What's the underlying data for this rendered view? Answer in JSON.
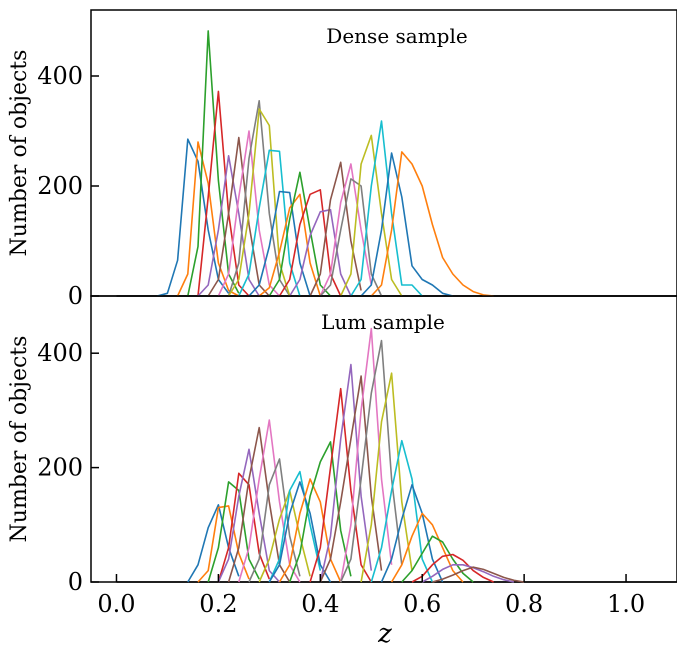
{
  "figure": {
    "xlabel": "z",
    "ylabel": "Number of objects",
    "xlim": [
      -0.05,
      1.1
    ],
    "xticks": [
      0.0,
      0.2,
      0.4,
      0.6,
      0.8,
      1.0
    ],
    "xtick_labels": [
      "0.0",
      "0.2",
      "0.4",
      "0.6",
      "0.8",
      "1.0"
    ]
  },
  "chart_data": [
    {
      "type": "line",
      "title": "Dense sample",
      "xlabel": "",
      "ylabel": "Number of objects",
      "xlim": [
        -0.05,
        1.1
      ],
      "ylim": [
        0,
        520
      ],
      "yticks": [
        0,
        200,
        400
      ],
      "ytick_labels": [
        "0",
        "200",
        "400"
      ],
      "grid": false,
      "series": [
        {
          "color": "#1f77b4",
          "x": [
            0.08,
            0.1,
            0.12,
            0.14,
            0.16,
            0.18,
            0.2,
            0.22
          ],
          "values": [
            0,
            5,
            65,
            285,
            245,
            120,
            30,
            5
          ]
        },
        {
          "color": "#ff7f0e",
          "x": [
            0.12,
            0.14,
            0.16,
            0.18,
            0.2,
            0.22,
            0.24
          ],
          "values": [
            0,
            40,
            280,
            205,
            60,
            10,
            0
          ]
        },
        {
          "color": "#2ca02c",
          "x": [
            0.14,
            0.16,
            0.18,
            0.2,
            0.22,
            0.24
          ],
          "values": [
            0,
            90,
            482,
            210,
            40,
            5
          ]
        },
        {
          "color": "#d62728",
          "x": [
            0.16,
            0.18,
            0.2,
            0.22,
            0.24,
            0.26
          ],
          "values": [
            0,
            180,
            372,
            150,
            20,
            0
          ]
        },
        {
          "color": "#9467bd",
          "x": [
            0.16,
            0.18,
            0.2,
            0.22,
            0.24,
            0.26,
            0.28
          ],
          "values": [
            0,
            20,
            120,
            255,
            150,
            30,
            0
          ]
        },
        {
          "color": "#8c564b",
          "x": [
            0.18,
            0.2,
            0.22,
            0.24,
            0.26,
            0.28,
            0.3
          ],
          "values": [
            0,
            30,
            150,
            288,
            130,
            20,
            0
          ]
        },
        {
          "color": "#e377c2",
          "x": [
            0.2,
            0.22,
            0.24,
            0.26,
            0.28,
            0.3,
            0.32
          ],
          "values": [
            0,
            40,
            180,
            300,
            120,
            20,
            0
          ]
        },
        {
          "color": "#7f7f7f",
          "x": [
            0.22,
            0.24,
            0.26,
            0.28,
            0.3,
            0.32,
            0.34
          ],
          "values": [
            0,
            60,
            250,
            355,
            150,
            30,
            0
          ]
        },
        {
          "color": "#bcbd22",
          "x": [
            0.22,
            0.24,
            0.26,
            0.28,
            0.3,
            0.32,
            0.34
          ],
          "values": [
            0,
            30,
            150,
            340,
            310,
            60,
            0
          ]
        },
        {
          "color": "#17becf",
          "x": [
            0.24,
            0.26,
            0.28,
            0.3,
            0.32,
            0.34,
            0.36
          ],
          "values": [
            0,
            40,
            160,
            265,
            263,
            60,
            0
          ]
        },
        {
          "color": "#1f77b4",
          "x": [
            0.26,
            0.28,
            0.3,
            0.32,
            0.34,
            0.36,
            0.38
          ],
          "values": [
            0,
            20,
            90,
            190,
            188,
            60,
            0
          ]
        },
        {
          "color": "#ff7f0e",
          "x": [
            0.28,
            0.3,
            0.32,
            0.34,
            0.36,
            0.38,
            0.4
          ],
          "values": [
            0,
            15,
            80,
            160,
            185,
            60,
            0
          ]
        },
        {
          "color": "#2ca02c",
          "x": [
            0.3,
            0.32,
            0.34,
            0.36,
            0.38,
            0.4,
            0.42
          ],
          "values": [
            0,
            30,
            140,
            225,
            120,
            20,
            0
          ]
        },
        {
          "color": "#d62728",
          "x": [
            0.32,
            0.34,
            0.36,
            0.38,
            0.4,
            0.42,
            0.44
          ],
          "values": [
            0,
            30,
            130,
            185,
            193,
            40,
            0
          ]
        },
        {
          "color": "#9467bd",
          "x": [
            0.34,
            0.36,
            0.38,
            0.4,
            0.42,
            0.44,
            0.46
          ],
          "values": [
            0,
            30,
            110,
            153,
            157,
            40,
            0
          ]
        },
        {
          "color": "#8c564b",
          "x": [
            0.38,
            0.4,
            0.42,
            0.44,
            0.46,
            0.48
          ],
          "values": [
            0,
            40,
            175,
            243,
            100,
            10
          ]
        },
        {
          "color": "#e377c2",
          "x": [
            0.4,
            0.42,
            0.44,
            0.46,
            0.48,
            0.5
          ],
          "values": [
            0,
            40,
            170,
            240,
            120,
            20
          ]
        },
        {
          "color": "#7f7f7f",
          "x": [
            0.4,
            0.42,
            0.44,
            0.46,
            0.48,
            0.5,
            0.52
          ],
          "values": [
            0,
            20,
            120,
            213,
            200,
            40,
            0
          ]
        },
        {
          "color": "#bcbd22",
          "x": [
            0.44,
            0.46,
            0.48,
            0.5,
            0.52,
            0.54,
            0.56
          ],
          "values": [
            0,
            40,
            240,
            292,
            150,
            30,
            0
          ]
        },
        {
          "color": "#17becf",
          "x": [
            0.46,
            0.48,
            0.5,
            0.52,
            0.54,
            0.56,
            0.58,
            0.6
          ],
          "values": [
            0,
            30,
            200,
            318,
            150,
            20,
            20,
            0
          ]
        },
        {
          "color": "#1f77b4",
          "x": [
            0.48,
            0.5,
            0.52,
            0.54,
            0.56,
            0.58,
            0.6,
            0.62,
            0.64,
            0.66
          ],
          "values": [
            0,
            20,
            120,
            260,
            180,
            55,
            30,
            20,
            5,
            0
          ]
        },
        {
          "color": "#ff7f0e",
          "x": [
            0.5,
            0.52,
            0.54,
            0.56,
            0.58,
            0.6,
            0.62,
            0.64,
            0.66,
            0.68,
            0.7,
            0.72,
            0.74
          ],
          "values": [
            0,
            20,
            120,
            262,
            240,
            200,
            130,
            70,
            40,
            20,
            8,
            2,
            0
          ]
        }
      ]
    },
    {
      "type": "line",
      "title": "Lum sample",
      "xlabel": "z",
      "ylabel": "Number of objects",
      "xlim": [
        -0.05,
        1.1
      ],
      "ylim": [
        0,
        500
      ],
      "yticks": [
        0,
        200,
        400
      ],
      "ytick_labels": [
        "0",
        "200",
        "400"
      ],
      "grid": false,
      "series": [
        {
          "color": "#1f77b4",
          "x": [
            0.14,
            0.16,
            0.18,
            0.2,
            0.22,
            0.24
          ],
          "values": [
            0,
            30,
            95,
            135,
            60,
            10
          ]
        },
        {
          "color": "#ff7f0e",
          "x": [
            0.16,
            0.18,
            0.2,
            0.22,
            0.24,
            0.26
          ],
          "values": [
            0,
            20,
            130,
            133,
            50,
            5
          ]
        },
        {
          "color": "#2ca02c",
          "x": [
            0.18,
            0.2,
            0.22,
            0.24,
            0.26,
            0.28
          ],
          "values": [
            0,
            60,
            175,
            160,
            40,
            5
          ]
        },
        {
          "color": "#d62728",
          "x": [
            0.2,
            0.22,
            0.24,
            0.26,
            0.28,
            0.3
          ],
          "values": [
            0,
            60,
            190,
            170,
            50,
            5
          ]
        },
        {
          "color": "#9467bd",
          "x": [
            0.2,
            0.22,
            0.24,
            0.26,
            0.28,
            0.3,
            0.32
          ],
          "values": [
            0,
            40,
            150,
            232,
            120,
            20,
            0
          ]
        },
        {
          "color": "#8c564b",
          "x": [
            0.22,
            0.24,
            0.26,
            0.28,
            0.3,
            0.32,
            0.34
          ],
          "values": [
            0,
            60,
            180,
            270,
            140,
            30,
            0
          ]
        },
        {
          "color": "#e377c2",
          "x": [
            0.24,
            0.26,
            0.28,
            0.3,
            0.32,
            0.34,
            0.36
          ],
          "values": [
            0,
            60,
            180,
            283,
            140,
            30,
            0
          ]
        },
        {
          "color": "#7f7f7f",
          "x": [
            0.26,
            0.28,
            0.3,
            0.32,
            0.34,
            0.36
          ],
          "values": [
            0,
            40,
            170,
            215,
            80,
            10
          ]
        },
        {
          "color": "#bcbd22",
          "x": [
            0.28,
            0.3,
            0.32,
            0.34,
            0.36,
            0.38
          ],
          "values": [
            0,
            40,
            110,
            160,
            80,
            10
          ]
        },
        {
          "color": "#17becf",
          "x": [
            0.3,
            0.32,
            0.34,
            0.36,
            0.38,
            0.4
          ],
          "values": [
            0,
            40,
            160,
            193,
            100,
            20
          ]
        },
        {
          "color": "#1f77b4",
          "x": [
            0.3,
            0.32,
            0.34,
            0.36,
            0.38,
            0.4,
            0.42
          ],
          "values": [
            0,
            30,
            120,
            175,
            120,
            30,
            0
          ]
        },
        {
          "color": "#ff7f0e",
          "x": [
            0.32,
            0.34,
            0.36,
            0.38,
            0.4,
            0.42,
            0.44
          ],
          "values": [
            0,
            30,
            120,
            180,
            140,
            40,
            0
          ]
        },
        {
          "color": "#2ca02c",
          "x": [
            0.34,
            0.36,
            0.38,
            0.4,
            0.42,
            0.44,
            0.46
          ],
          "values": [
            0,
            50,
            150,
            210,
            245,
            90,
            10
          ]
        },
        {
          "color": "#d62728",
          "x": [
            0.38,
            0.4,
            0.42,
            0.44,
            0.46,
            0.48,
            0.5
          ],
          "values": [
            0,
            60,
            200,
            338,
            160,
            30,
            0
          ]
        },
        {
          "color": "#9467bd",
          "x": [
            0.4,
            0.42,
            0.44,
            0.46,
            0.48,
            0.5
          ],
          "values": [
            0,
            80,
            250,
            380,
            150,
            20
          ]
        },
        {
          "color": "#8c564b",
          "x": [
            0.4,
            0.42,
            0.44,
            0.46,
            0.48,
            0.5,
            0.52
          ],
          "values": [
            0,
            40,
            140,
            250,
            360,
            150,
            20
          ]
        },
        {
          "color": "#e377c2",
          "x": [
            0.44,
            0.46,
            0.48,
            0.5,
            0.52,
            0.54
          ],
          "values": [
            0,
            100,
            300,
            443,
            180,
            30
          ]
        },
        {
          "color": "#7f7f7f",
          "x": [
            0.44,
            0.46,
            0.48,
            0.5,
            0.52,
            0.54,
            0.56
          ],
          "values": [
            0,
            40,
            180,
            330,
            422,
            180,
            30
          ]
        },
        {
          "color": "#bcbd22",
          "x": [
            0.48,
            0.5,
            0.52,
            0.54,
            0.56,
            0.58
          ],
          "values": [
            0,
            100,
            280,
            365,
            140,
            20
          ]
        },
        {
          "color": "#17becf",
          "x": [
            0.5,
            0.52,
            0.54,
            0.56,
            0.58,
            0.6,
            0.62
          ],
          "values": [
            0,
            60,
            160,
            247,
            180,
            40,
            0
          ]
        },
        {
          "color": "#1f77b4",
          "x": [
            0.52,
            0.54,
            0.56,
            0.58,
            0.6,
            0.62,
            0.64
          ],
          "values": [
            0,
            40,
            110,
            170,
            120,
            40,
            0
          ]
        },
        {
          "color": "#ff7f0e",
          "x": [
            0.54,
            0.56,
            0.58,
            0.6,
            0.62,
            0.64,
            0.66,
            0.68
          ],
          "values": [
            0,
            30,
            80,
            120,
            100,
            60,
            20,
            0
          ]
        },
        {
          "color": "#2ca02c",
          "x": [
            0.56,
            0.58,
            0.6,
            0.62,
            0.64,
            0.66,
            0.68,
            0.7
          ],
          "values": [
            0,
            20,
            50,
            80,
            70,
            40,
            15,
            0
          ]
        },
        {
          "color": "#d62728",
          "x": [
            0.58,
            0.6,
            0.62,
            0.64,
            0.66,
            0.68,
            0.7,
            0.72,
            0.74
          ],
          "values": [
            0,
            10,
            30,
            45,
            48,
            38,
            20,
            8,
            0
          ]
        },
        {
          "color": "#9467bd",
          "x": [
            0.6,
            0.62,
            0.64,
            0.66,
            0.68,
            0.7,
            0.72,
            0.74,
            0.76,
            0.78
          ],
          "values": [
            0,
            10,
            22,
            30,
            30,
            25,
            18,
            10,
            4,
            0
          ]
        },
        {
          "color": "#8c564b",
          "x": [
            0.62,
            0.64,
            0.66,
            0.68,
            0.7,
            0.72,
            0.74,
            0.76,
            0.78,
            0.8
          ],
          "values": [
            0,
            5,
            12,
            20,
            26,
            22,
            15,
            8,
            3,
            0
          ]
        }
      ]
    }
  ]
}
